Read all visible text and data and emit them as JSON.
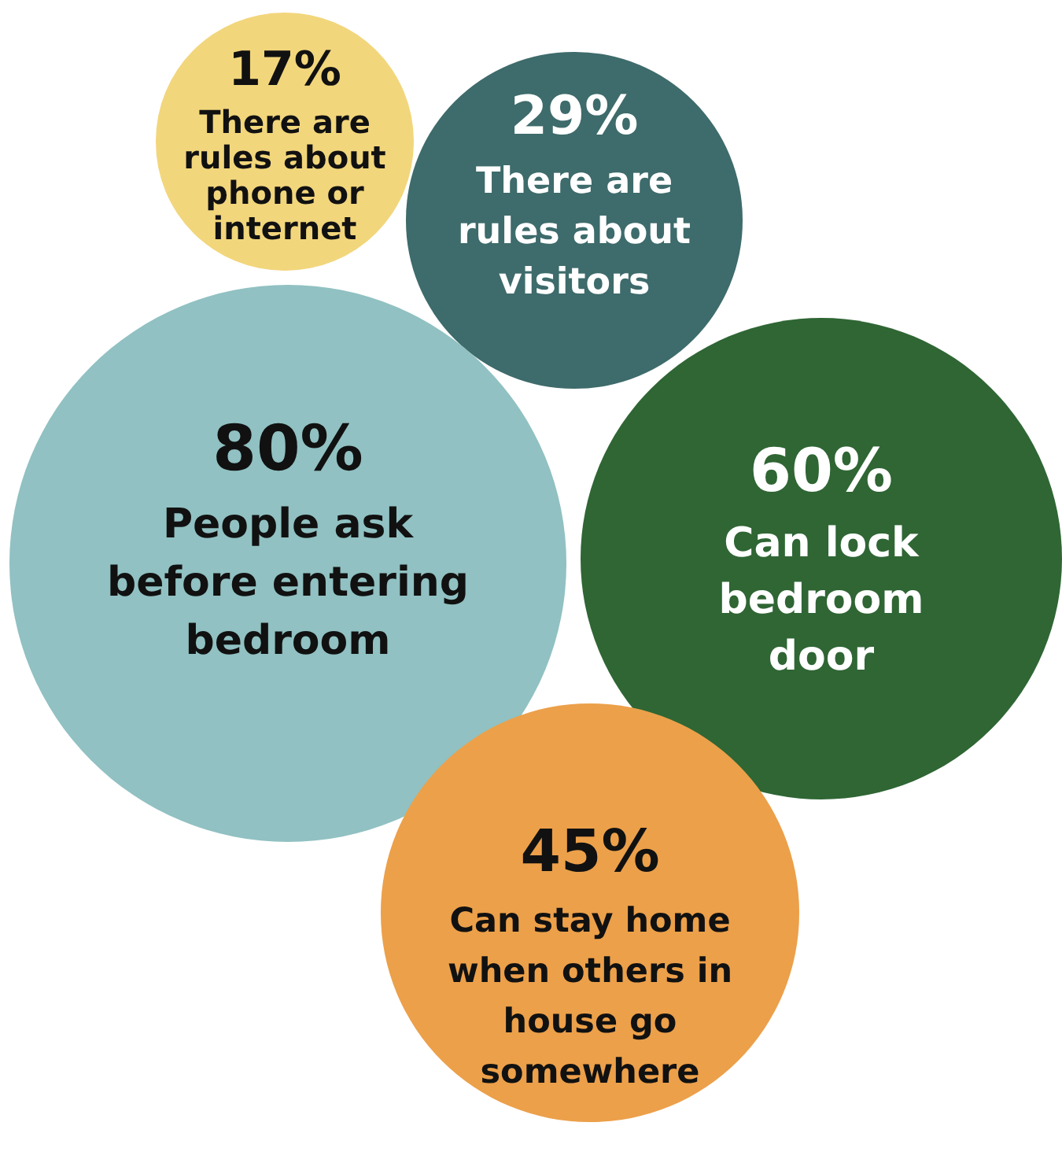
{
  "chart_data": {
    "type": "other",
    "categories": [
      "There are rules about phone or internet",
      "There are rules about visitors",
      "People ask before entering bedroom",
      "Can lock bedroom door",
      "Can stay home when others in house go somewhere"
    ],
    "values": [
      17,
      29,
      80,
      60,
      45
    ],
    "value_labels": [
      "17%",
      "29%",
      "80%",
      "60%",
      "45%"
    ],
    "colors": [
      "#f2d67c",
      "#3e6b6b",
      "#91c1c2",
      "#2f6634",
      "#eca04a"
    ]
  }
}
